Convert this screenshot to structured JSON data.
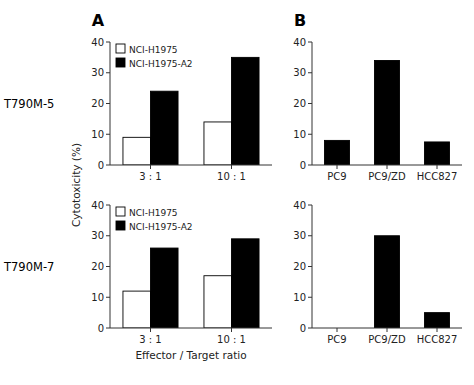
{
  "chart_data": [
    {
      "type": "bar",
      "title": "A",
      "annotations": [
        "T790M-5"
      ],
      "y_label": "Cytotoxicity (%)",
      "categories": [
        "3 : 1",
        "10 : 1"
      ],
      "series": [
        {
          "name": "NCI-H1975",
          "color": "#ffffff",
          "values": [
            9,
            14
          ]
        },
        {
          "name": "NCI-H1975-A2",
          "color": "#000000",
          "values": [
            24,
            35
          ]
        }
      ],
      "ylim": [
        0,
        40
      ],
      "yticks": [
        0,
        10,
        20,
        30,
        40
      ],
      "grid": false,
      "legend": "upper left"
    },
    {
      "type": "bar",
      "annotations": [
        "T790M-7"
      ],
      "x_label": "Effector / Target  ratio",
      "categories": [
        "3 : 1",
        "10 : 1"
      ],
      "series": [
        {
          "name": "NCI-H1975",
          "color": "#ffffff",
          "values": [
            12,
            17
          ]
        },
        {
          "name": "NCI-H1975-A2",
          "color": "#000000",
          "values": [
            26,
            29
          ]
        }
      ],
      "ylim": [
        0,
        40
      ],
      "yticks": [
        0,
        10,
        20,
        30,
        40
      ],
      "grid": false,
      "legend": "upper left"
    },
    {
      "type": "bar",
      "title": "B",
      "categories": [
        "PC9",
        "PC9/ZD",
        "HCC827"
      ],
      "values": [
        8,
        34,
        7.5
      ],
      "colors": [
        "#000000",
        "#000000",
        "#000000"
      ],
      "ylim": [
        0,
        40
      ],
      "yticks": [
        0,
        10,
        20,
        30,
        40
      ],
      "grid": false
    },
    {
      "type": "bar",
      "categories": [
        "PC9",
        "PC9/ZD",
        "HCC827"
      ],
      "values": [
        0,
        30,
        5
      ],
      "colors": [
        "#ffffff",
        "#000000",
        "#000000"
      ],
      "ylim": [
        0,
        40
      ],
      "yticks": [
        0,
        10,
        20,
        30,
        40
      ],
      "grid": false
    }
  ]
}
